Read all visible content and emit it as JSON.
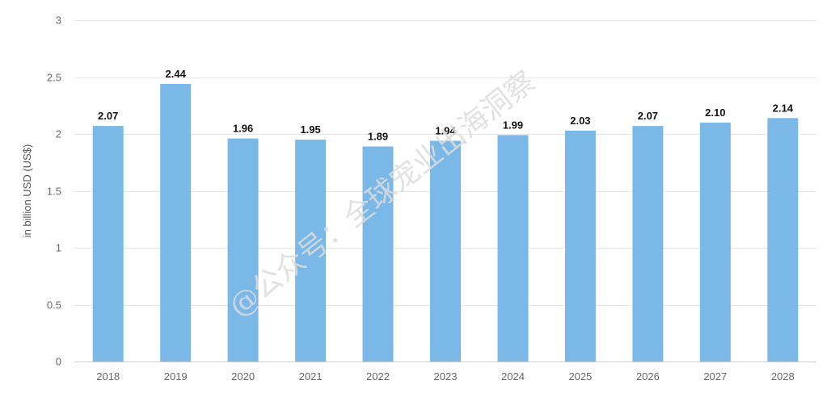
{
  "watermark": "@公众号：全球宠业出海洞察",
  "chart_data": {
    "type": "bar",
    "title": "",
    "xlabel": "",
    "ylabel": "in billion USD (US$)",
    "categories": [
      "2018",
      "2019",
      "2020",
      "2021",
      "2022",
      "2023",
      "2024",
      "2025",
      "2026",
      "2027",
      "2028"
    ],
    "values": [
      2.07,
      2.44,
      1.96,
      1.95,
      1.89,
      1.94,
      1.99,
      2.03,
      2.07,
      2.1,
      2.14
    ],
    "value_labels": [
      "2.07",
      "2.44",
      "1.96",
      "1.95",
      "1.89",
      "1.94",
      "1.99",
      "2.03",
      "2.07",
      "2.10",
      "2.14"
    ],
    "ylim": [
      0,
      3
    ],
    "yticks": [
      0,
      0.5,
      1,
      1.5,
      2,
      2.5,
      3
    ],
    "ytick_labels": [
      "0",
      "0.5",
      "1",
      "1.5",
      "2",
      "2.5",
      "3"
    ],
    "grid": true,
    "legend": "none",
    "bar_color": "#7ab8e8"
  }
}
